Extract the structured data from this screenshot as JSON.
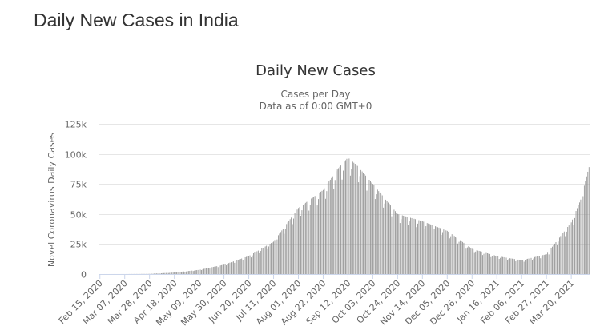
{
  "page": {
    "title": "Daily New Cases in India"
  },
  "chart_data": {
    "type": "bar",
    "title": "Daily New Cases",
    "subtitle_lines": [
      "Cases per Day",
      "Data as of 0:00 GMT+0"
    ],
    "ylabel": "Novel Coronavirus Daily Cases",
    "xlabel": "",
    "ylim": [
      0,
      125000
    ],
    "yticks": [
      {
        "value": 0,
        "label": "0"
      },
      {
        "value": 25000,
        "label": "25k"
      },
      {
        "value": 50000,
        "label": "50k"
      },
      {
        "value": 75000,
        "label": "75k"
      },
      {
        "value": 100000,
        "label": "100k"
      },
      {
        "value": 125000,
        "label": "125k"
      }
    ],
    "xticks": [
      "Feb 15, 2020",
      "Mar 07, 2020",
      "Mar 28, 2020",
      "Apr 18, 2020",
      "May 09, 2020",
      "May 30, 2020",
      "Jun 20, 2020",
      "Jul 11, 2020",
      "Aug 01, 2020",
      "Aug 22, 2020",
      "Sep 12, 2020",
      "Oct 03, 2020",
      "Oct 24, 2020",
      "Nov 14, 2020",
      "Dec 05, 2020",
      "Dec 26, 2020",
      "Jan 16, 2021",
      "Feb 06, 2021",
      "Feb 27, 2021",
      "Mar 20, 2021"
    ],
    "grid": true,
    "bar_color": "#8c8c8c",
    "series": [
      {
        "x_start": "Feb 15, 2020",
        "x_end": "Apr 04, 2021",
        "interval": "day",
        "keypoints": [
          [
            "Feb 15, 2020",
            0
          ],
          [
            "Mar 07, 2020",
            20
          ],
          [
            "Mar 28, 2020",
            150
          ],
          [
            "Apr 18, 2020",
            1300
          ],
          [
            "May 09, 2020",
            3500
          ],
          [
            "May 30, 2020",
            7800
          ],
          [
            "Jun 20, 2020",
            15000
          ],
          [
            "Jul 11, 2020",
            27000
          ],
          [
            "Aug 01, 2020",
            55000
          ],
          [
            "Aug 22, 2020",
            70000
          ],
          [
            "Sep 03, 2020",
            87000
          ],
          [
            "Sep 12, 2020",
            97000
          ],
          [
            "Sep 20, 2020",
            90000
          ],
          [
            "Oct 03, 2020",
            75000
          ],
          [
            "Oct 24, 2020",
            50000
          ],
          [
            "Nov 14, 2020",
            44000
          ],
          [
            "Dec 05, 2020",
            36000
          ],
          [
            "Dec 26, 2020",
            21000
          ],
          [
            "Jan 16, 2021",
            15000
          ],
          [
            "Feb 06, 2021",
            11500
          ],
          [
            "Feb 27, 2021",
            16500
          ],
          [
            "Mar 20, 2021",
            43000
          ],
          [
            "Mar 28, 2021",
            62000
          ],
          [
            "Apr 04, 2021",
            89000
          ]
        ]
      }
    ]
  }
}
